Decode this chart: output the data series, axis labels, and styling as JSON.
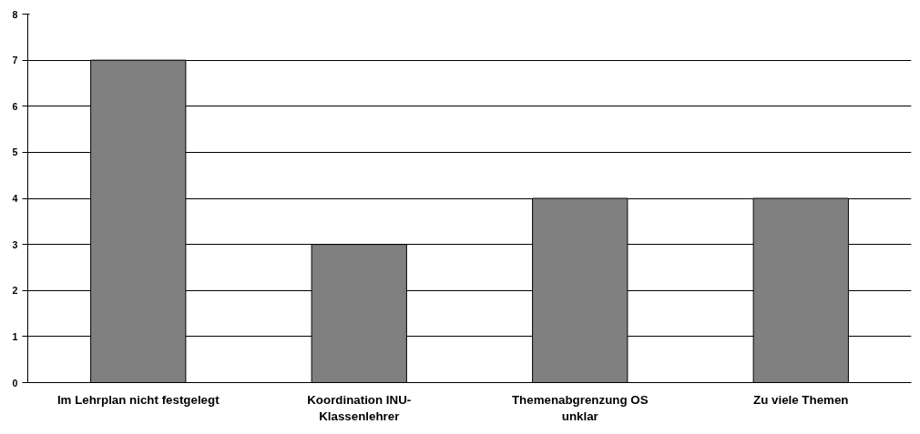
{
  "chart_data": {
    "type": "bar",
    "categories": [
      "Im Lehrplan nicht festgelegt",
      "Koordination INU-\nKlassenlehrer",
      "Themenabgrenzung OS\nunklar",
      "Zu viele Themen"
    ],
    "values": [
      7,
      3,
      4,
      4
    ],
    "color": "#808080",
    "ylim": [
      0,
      8
    ],
    "yticks": [
      0,
      1,
      2,
      3,
      4,
      5,
      6,
      7,
      8
    ],
    "grid": "y"
  }
}
